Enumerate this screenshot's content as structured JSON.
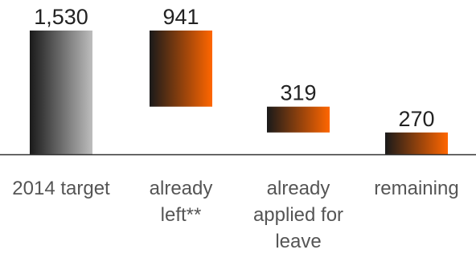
{
  "chart_data": {
    "type": "waterfall",
    "categories": [
      "2014 target",
      "already left**",
      "already applied for leave",
      "remaining"
    ],
    "category_lines": [
      [
        "2014 target"
      ],
      [
        "already",
        "left**"
      ],
      [
        "already",
        "applied for",
        "leave"
      ],
      [
        "remaining"
      ]
    ],
    "values": [
      1530,
      941,
      319,
      270
    ],
    "value_labels": [
      "1,530",
      "941",
      "319",
      "270"
    ],
    "steps": [
      {
        "category": "2014 target",
        "start": 0,
        "end": 1530,
        "kind": "total"
      },
      {
        "category": "already left**",
        "start": 1530,
        "end": 589,
        "kind": "decrease"
      },
      {
        "category": "already applied for leave",
        "start": 589,
        "end": 270,
        "kind": "decrease"
      },
      {
        "category": "remaining",
        "start": 270,
        "end": 0,
        "kind": "total"
      }
    ],
    "ylim": [
      0,
      1530
    ],
    "grid": false,
    "colors": {
      "total_gradient": [
        "#1a1a1a",
        "#bdbdbd"
      ],
      "step_gradient": [
        "#1a1a1a",
        "#ff6600"
      ],
      "axis": "#333333",
      "label": "#555555",
      "value_label": "#222222"
    }
  }
}
